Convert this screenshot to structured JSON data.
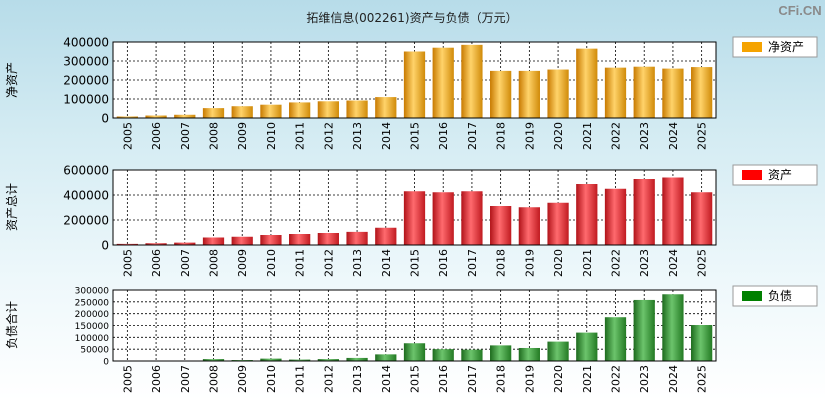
{
  "title": "拓维信息(002261)资产与负债（万元）",
  "brand": "CFi.CN",
  "colors": {
    "net": "#f0a015",
    "asset": "#e3242b",
    "debt": "#2e8b2e",
    "legend_net": "#f5a300",
    "legend_asset": "#ff0000",
    "legend_debt": "#008000"
  },
  "chart_data": [
    {
      "type": "bar",
      "key": "net",
      "title": "拓维信息(002261)资产与负债（万元）",
      "ylabel": "净资产",
      "legend": "净资产",
      "legend_position": "top-right",
      "categories": [
        "2005",
        "2006",
        "2007",
        "2008",
        "2009",
        "2010",
        "2011",
        "2012",
        "2013",
        "2014",
        "2015",
        "2016",
        "2017",
        "2018",
        "2019",
        "2020",
        "2021",
        "2022",
        "2023",
        "2024",
        "2025"
      ],
      "values": [
        8000,
        13000,
        17000,
        52000,
        62000,
        70000,
        82000,
        88000,
        92000,
        110000,
        350000,
        370000,
        385000,
        248000,
        248000,
        255000,
        365000,
        265000,
        270000,
        260000,
        268000
      ],
      "ylim": [
        0,
        400000
      ],
      "yticks": [
        0,
        100000,
        200000,
        300000,
        400000
      ],
      "grid": true
    },
    {
      "type": "bar",
      "key": "asset",
      "ylabel": "资产总计",
      "legend": "资产",
      "legend_position": "top-right",
      "categories": [
        "2005",
        "2006",
        "2007",
        "2008",
        "2009",
        "2010",
        "2011",
        "2012",
        "2013",
        "2014",
        "2015",
        "2016",
        "2017",
        "2018",
        "2019",
        "2020",
        "2021",
        "2022",
        "2023",
        "2024",
        "2025"
      ],
      "values": [
        9000,
        14000,
        19000,
        60000,
        66000,
        80000,
        88000,
        96000,
        105000,
        138000,
        430000,
        422000,
        430000,
        312000,
        302000,
        338000,
        488000,
        450000,
        528000,
        540000,
        422000
      ],
      "ylim": [
        0,
        600000
      ],
      "yticks": [
        0,
        200000,
        400000,
        600000
      ],
      "grid": true
    },
    {
      "type": "bar",
      "key": "debt",
      "ylabel": "负债合计",
      "legend": "负债",
      "legend_position": "top-right",
      "categories": [
        "2005",
        "2006",
        "2007",
        "2008",
        "2009",
        "2010",
        "2011",
        "2012",
        "2013",
        "2014",
        "2015",
        "2016",
        "2017",
        "2018",
        "2019",
        "2020",
        "2021",
        "2022",
        "2023",
        "2024",
        "2025"
      ],
      "values": [
        1000,
        1000,
        2000,
        8000,
        4000,
        10000,
        6000,
        8000,
        13000,
        28000,
        75000,
        50000,
        48000,
        66000,
        55000,
        82000,
        120000,
        185000,
        258000,
        282000,
        152000
      ],
      "ylim": [
        0,
        300000
      ],
      "yticks": [
        0,
        50000,
        100000,
        150000,
        200000,
        250000,
        300000
      ],
      "grid": true
    }
  ]
}
